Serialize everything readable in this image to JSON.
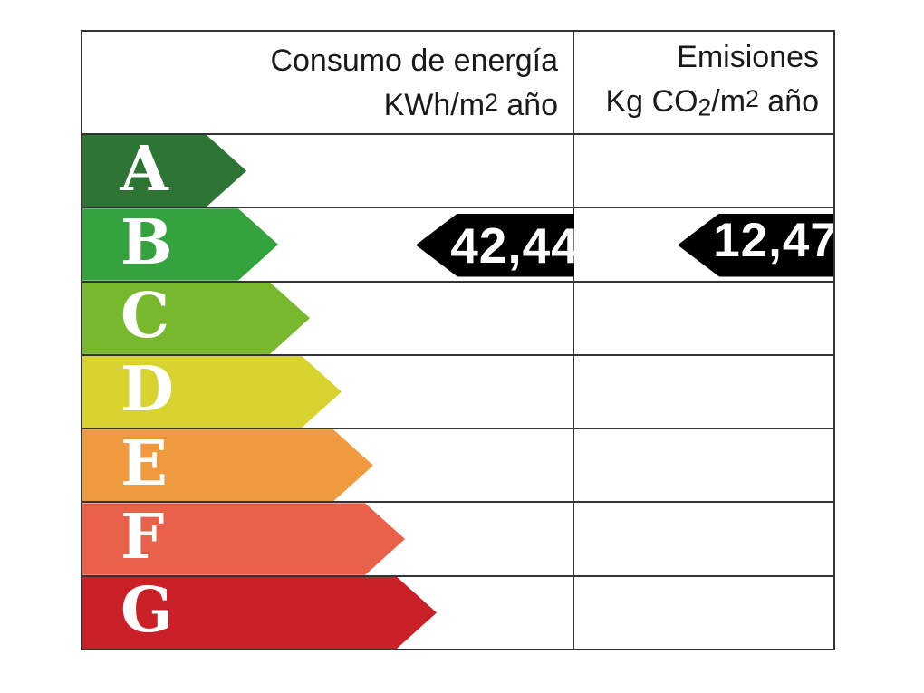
{
  "header": {
    "consumption": {
      "title": "Consumo de energía",
      "unit_prefix": "KWh/m",
      "unit_sup": "2",
      "unit_suffix": " año"
    },
    "emissions": {
      "title": "Emisiones",
      "unit_p1": "Kg CO",
      "unit_sub": "2",
      "unit_p2": "/m",
      "unit_sup": "2",
      "unit_p3": " año"
    }
  },
  "bands": [
    {
      "letter": "A",
      "color": "#2d7435",
      "arrow_width": 181
    },
    {
      "letter": "B",
      "color": "#34a33e",
      "arrow_width": 216
    },
    {
      "letter": "C",
      "color": "#77b82d",
      "arrow_width": 251
    },
    {
      "letter": "D",
      "color": "#d9d32f",
      "arrow_width": 286
    },
    {
      "letter": "E",
      "color": "#f09a3f",
      "arrow_width": 321
    },
    {
      "letter": "F",
      "color": "#e9614b",
      "arrow_width": 356
    },
    {
      "letter": "G",
      "color": "#ca2128",
      "arrow_width": 391
    }
  ],
  "ratings": {
    "rated_band": "B",
    "consumption_value": "42,44",
    "emissions_value": "12,47",
    "marker_color": "#000000"
  },
  "grid_color": "#333333",
  "chart_data": {
    "type": "table",
    "columns": [
      "Consumo de energía KWh/m2 año",
      "Emisiones Kg CO2/m2 año"
    ],
    "bands": [
      "A",
      "B",
      "C",
      "D",
      "E",
      "F",
      "G"
    ],
    "band_colors": [
      "#2d7435",
      "#34a33e",
      "#77b82d",
      "#d9d32f",
      "#f09a3f",
      "#e9614b",
      "#ca2128"
    ],
    "rated_band": "B",
    "values": {
      "consumo_kwh_m2_ano": 42.44,
      "emisiones_kg_co2_m2_ano": 12.47
    },
    "layout_hints": {
      "arrow_lengths_step": "increasing from A (shortest) to G (longest)",
      "value_markers": "black left-pointing arrows on row B in each column"
    }
  }
}
